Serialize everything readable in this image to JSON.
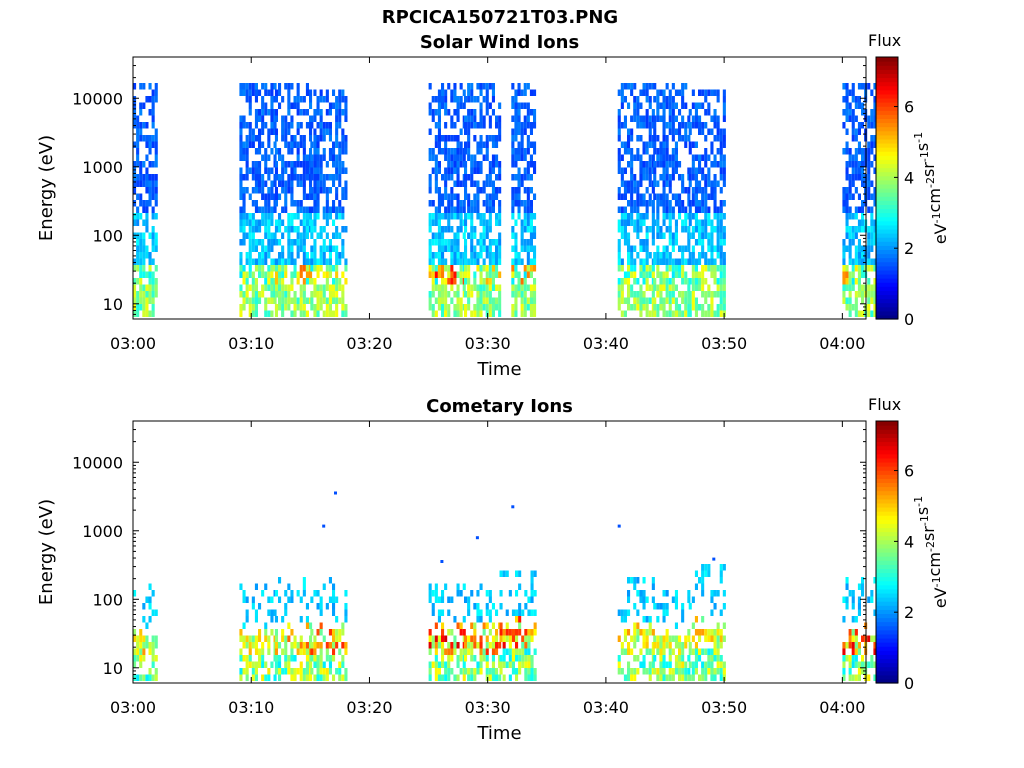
{
  "figure": {
    "title": "RPCICA150721T03.PNG"
  },
  "chart_data": [
    {
      "type": "heatmap",
      "title": "Solar Wind Ions",
      "xlabel": "Time",
      "ylabel": "Energy (eV)",
      "xlim": [
        "03:00",
        "04:02"
      ],
      "ylim": [
        6,
        40000
      ],
      "y_scale": "log",
      "x_ticks": [
        "03:00",
        "03:10",
        "03:20",
        "03:30",
        "03:40",
        "03:50",
        "04:00"
      ],
      "y_ticks": [
        "10",
        "100",
        "1000",
        "10000"
      ],
      "colorbar": {
        "title": "Flux",
        "label": "eV-1cm-2sr-1s-1",
        "range": [
          0,
          7.4
        ],
        "ticks": [
          "0",
          "2",
          "4",
          "6"
        ],
        "colormap": "jet"
      },
      "bursts": [
        {
          "t_start": "03:00",
          "t_end": "03:01",
          "e_max": 14000,
          "peak_flux": 4.6
        },
        {
          "t_start": "03:09",
          "t_end": "03:11",
          "e_max": 15000,
          "peak_flux": 4.8
        },
        {
          "t_start": "03:12",
          "t_end": "03:14",
          "e_max": 15000,
          "peak_flux": 5.8
        },
        {
          "t_start": "03:15",
          "t_end": "03:17",
          "e_max": 13000,
          "peak_flux": 5.0
        },
        {
          "t_start": "03:25",
          "t_end": "03:27",
          "e_max": 15000,
          "peak_flux": 6.6
        },
        {
          "t_start": "03:28",
          "t_end": "03:30",
          "e_max": 14000,
          "peak_flux": 5.4
        },
        {
          "t_start": "03:32",
          "t_end": "03:33",
          "e_max": 14000,
          "peak_flux": 6.0
        },
        {
          "t_start": "03:41",
          "t_end": "03:43",
          "e_max": 15000,
          "peak_flux": 4.8
        },
        {
          "t_start": "03:44",
          "t_end": "03:46",
          "e_max": 14000,
          "peak_flux": 4.4
        },
        {
          "t_start": "03:47",
          "t_end": "03:49",
          "e_max": 13000,
          "peak_flux": 4.6
        },
        {
          "t_start": "04:00",
          "t_end": "04:02",
          "e_max": 14000,
          "peak_flux": 5.6
        }
      ]
    },
    {
      "type": "heatmap",
      "title": "Cometary Ions",
      "xlabel": "Time",
      "ylabel": "Energy (eV)",
      "xlim": [
        "03:00",
        "04:02"
      ],
      "ylim": [
        6,
        40000
      ],
      "y_scale": "log",
      "x_ticks": [
        "03:00",
        "03:10",
        "03:20",
        "03:30",
        "03:40",
        "03:50",
        "04:00"
      ],
      "y_ticks": [
        "10",
        "100",
        "1000",
        "10000"
      ],
      "colorbar": {
        "title": "Flux",
        "label": "eV-1cm-2sr-1s-1",
        "range": [
          0,
          7.4
        ],
        "ticks": [
          "0",
          "2",
          "4",
          "6"
        ],
        "colormap": "jet"
      },
      "bursts": [
        {
          "t_start": "03:00",
          "t_end": "03:01",
          "e_max": 140,
          "peak_flux": 5.4
        },
        {
          "t_start": "03:09",
          "t_end": "03:11",
          "e_max": 150,
          "peak_flux": 5.2
        },
        {
          "t_start": "03:12",
          "t_end": "03:14",
          "e_max": 180,
          "peak_flux": 6.0
        },
        {
          "t_start": "03:15",
          "t_end": "03:17",
          "e_max": 200,
          "peak_flux": 6.2
        },
        {
          "t_start": "03:25",
          "t_end": "03:27",
          "e_max": 160,
          "peak_flux": 6.8
        },
        {
          "t_start": "03:28",
          "t_end": "03:30",
          "e_max": 160,
          "peak_flux": 6.4
        },
        {
          "t_start": "03:31",
          "t_end": "03:33",
          "e_max": 240,
          "peak_flux": 6.8
        },
        {
          "t_start": "03:41",
          "t_end": "03:43",
          "e_max": 200,
          "peak_flux": 5.6
        },
        {
          "t_start": "03:44",
          "t_end": "03:46",
          "e_max": 120,
          "peak_flux": 5.0
        },
        {
          "t_start": "03:47",
          "t_end": "03:49",
          "e_max": 300,
          "peak_flux": 5.4
        },
        {
          "t_start": "04:00",
          "t_end": "04:02",
          "e_max": 180,
          "peak_flux": 6.8
        }
      ],
      "isolated_points": [
        {
          "t": "03:17",
          "energy": 3500
        },
        {
          "t": "03:16",
          "energy": 1150
        },
        {
          "t": "03:32",
          "energy": 2200
        },
        {
          "t": "03:29",
          "energy": 780
        },
        {
          "t": "03:41",
          "energy": 1150
        },
        {
          "t": "03:26",
          "energy": 350
        },
        {
          "t": "03:49",
          "energy": 380
        }
      ]
    }
  ]
}
